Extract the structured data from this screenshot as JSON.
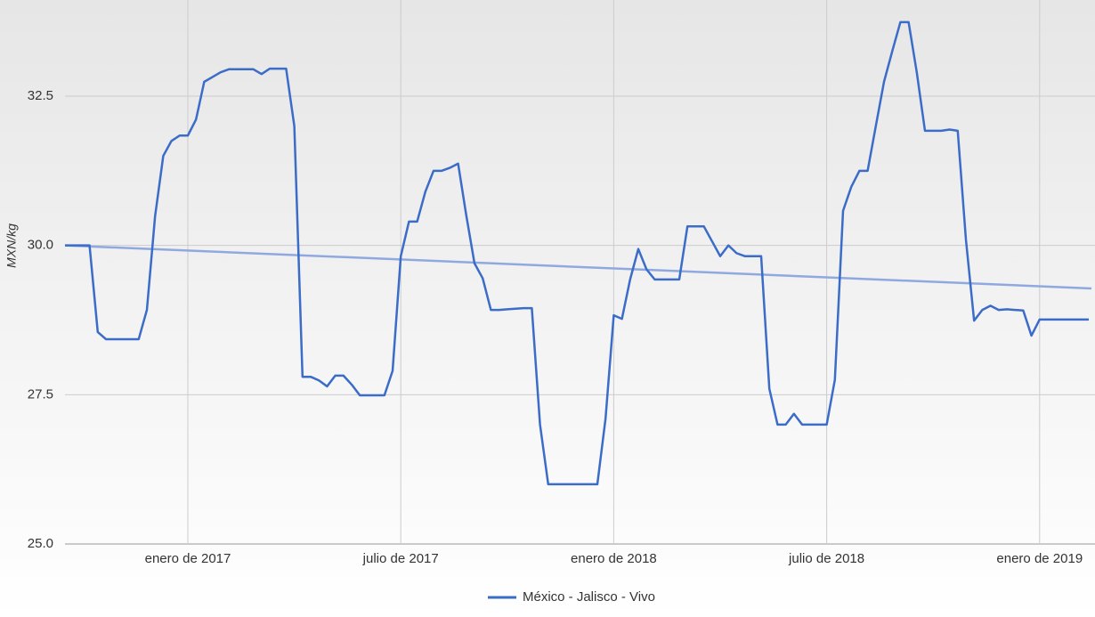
{
  "chart_data": {
    "type": "line",
    "y_axis_label": "MXN/kg",
    "categories": [
      null,
      null,
      null,
      null,
      null,
      null,
      null,
      null,
      null,
      null,
      null,
      null,
      null,
      null,
      null,
      "enero de 2017",
      null,
      null,
      null,
      null,
      null,
      null,
      null,
      null,
      null,
      null,
      null,
      null,
      null,
      null,
      null,
      null,
      null,
      null,
      null,
      null,
      null,
      null,
      null,
      null,
      null,
      "julio de 2017",
      null,
      null,
      null,
      null,
      null,
      null,
      null,
      null,
      null,
      null,
      null,
      null,
      null,
      null,
      null,
      null,
      null,
      null,
      null,
      null,
      null,
      null,
      null,
      null,
      null,
      "enero de 2018",
      null,
      null,
      null,
      null,
      null,
      null,
      null,
      null,
      null,
      null,
      null,
      null,
      null,
      null,
      null,
      null,
      null,
      null,
      null,
      null,
      null,
      null,
      null,
      null,
      null,
      "julio de 2018",
      null,
      null,
      null,
      null,
      null,
      null,
      null,
      null,
      null,
      null,
      null,
      null,
      null,
      null,
      null,
      null,
      null,
      null,
      null,
      null,
      null,
      null,
      null,
      null,
      null,
      "enero de 2019",
      null,
      null,
      null,
      null,
      null,
      null
    ],
    "series": [
      {
        "name": "México - Jalisco - Vivo",
        "color": "#3b6cc7",
        "values": [
          30.0,
          30.0,
          30.0,
          30.0,
          28.55,
          28.43,
          28.43,
          28.43,
          28.43,
          28.43,
          28.92,
          30.49,
          31.5,
          31.75,
          31.84,
          31.84,
          32.11,
          32.74,
          32.82,
          32.9,
          32.95,
          32.95,
          32.95,
          32.95,
          32.87,
          32.96,
          32.96,
          32.96,
          32.0,
          27.8,
          27.8,
          27.74,
          27.64,
          27.82,
          27.82,
          27.67,
          27.49,
          27.49,
          27.49,
          27.49,
          27.9,
          29.82,
          30.4,
          30.4,
          30.9,
          31.25,
          31.25,
          31.3,
          31.37,
          30.5,
          29.7,
          29.45,
          28.92,
          28.92,
          28.93,
          28.94,
          28.95,
          28.95,
          27.0,
          26.0,
          26.0,
          26.0,
          26.0,
          26.0,
          26.0,
          26.0,
          27.1,
          28.83,
          28.77,
          29.43,
          29.94,
          29.6,
          29.43,
          29.43,
          29.43,
          29.43,
          30.32,
          30.32,
          30.32,
          30.07,
          29.82,
          30.0,
          29.87,
          29.82,
          29.82,
          29.82,
          27.6,
          27.0,
          27.0,
          27.18,
          27.0,
          27.0,
          27.0,
          27.0,
          27.75,
          30.58,
          30.98,
          31.25,
          31.25,
          32.0,
          32.74,
          33.25,
          33.74,
          33.74,
          32.9,
          31.92,
          31.92,
          31.92,
          31.94,
          31.92,
          30.1,
          28.74,
          28.92,
          28.99,
          28.92,
          28.93,
          28.92,
          28.91,
          28.49,
          28.76,
          28.76,
          28.76,
          28.76,
          28.76,
          28.76,
          28.76
        ]
      }
    ],
    "trendline": {
      "color": "#8fa9e0",
      "values": [
        30.0,
        29.28
      ]
    },
    "ylim": [
      25,
      34.11
    ],
    "yticks": [
      {
        "value": 25,
        "label": "25.0"
      },
      {
        "value": 27.5,
        "label": "27.5"
      },
      {
        "value": 30,
        "label": "30.0"
      },
      {
        "value": 32.5,
        "label": "32.5"
      }
    ],
    "grid": true
  }
}
